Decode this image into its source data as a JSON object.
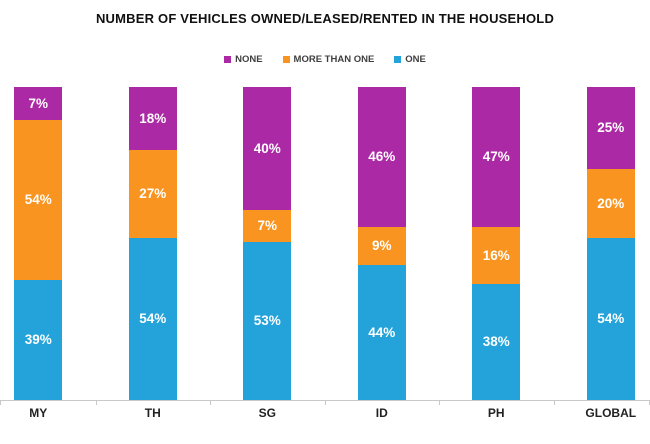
{
  "chart_data": {
    "type": "bar",
    "subtype": "stacked-percentage-column",
    "title": "NUMBER OF VEHICLES OWNED/LEASED/RENTED IN THE HOUSEHOLD",
    "categories": [
      "MY",
      "TH",
      "SG",
      "ID",
      "PH",
      "GLOBAL"
    ],
    "series": [
      {
        "name": "NONE",
        "color": "#AC29A5",
        "values": [
          7,
          18,
          40,
          46,
          47,
          25
        ]
      },
      {
        "name": "MORE THAN ONE",
        "color": "#F8941F",
        "values": [
          54,
          27,
          7,
          9,
          16,
          20
        ]
      },
      {
        "name": "ONE",
        "color": "#24A3DB",
        "values": [
          39,
          54,
          53,
          44,
          38,
          54
        ]
      }
    ],
    "stack_order_top_to_bottom": [
      "NONE",
      "MORE THAN ONE",
      "ONE"
    ],
    "value_suffix": "%",
    "data_label_color": "#FFFFFF",
    "legend_position": "top-center",
    "axis_line_color": "#C9C9C9",
    "grid": "off",
    "background": "#FFFFFF",
    "xlabel": "",
    "ylabel": "",
    "ylim": [
      0,
      100
    ]
  }
}
